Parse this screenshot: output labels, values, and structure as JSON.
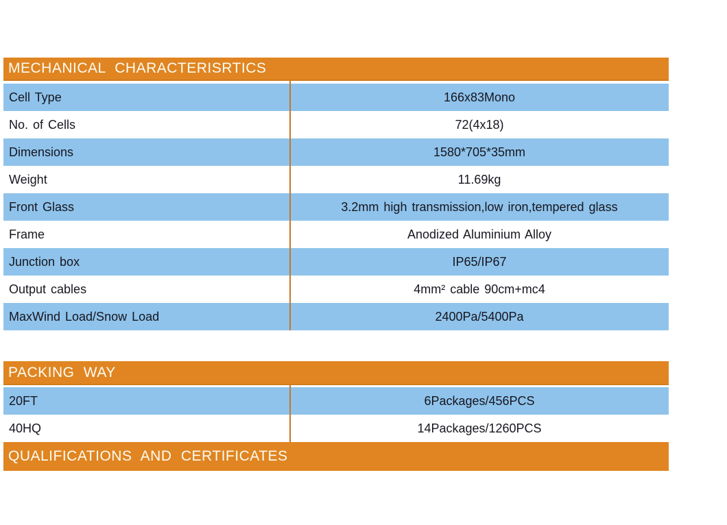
{
  "colors": {
    "header_orange": "#E08521",
    "row_blue": "#8FC3EB",
    "divider_orange": "#C4762F",
    "header_text": "#FCFCF4",
    "body_text": "#16161F"
  },
  "sections": [
    {
      "title": "MECHANICAL CHARACTERISRTICS",
      "rows": [
        {
          "label": "Cell Type",
          "value": "166x83Mono"
        },
        {
          "label": "No. of Cells",
          "value": "72(4x18)"
        },
        {
          "label": "Dimensions",
          "value": "1580*705*35mm"
        },
        {
          "label": "Weight",
          "value": "11.69kg"
        },
        {
          "label": "Front Glass",
          "value": "3.2mm high transmission,low iron,tempered glass"
        },
        {
          "label": "Frame",
          "value": "Anodized Aluminium Alloy"
        },
        {
          "label": "Junction box",
          "value": "IP65/IP67"
        },
        {
          "label": "Output cables",
          "value": "4mm² cable 90cm+mc4"
        },
        {
          "label": "MaxWind Load/Snow Load",
          "value": "2400Pa/5400Pa"
        }
      ]
    },
    {
      "title": "PACKING WAY",
      "rows": [
        {
          "label": "20FT",
          "value": "6Packages/456PCS"
        },
        {
          "label": "40HQ",
          "value": "14Packages/1260PCS"
        }
      ]
    },
    {
      "title": "QUALIFICATIONS AND CERTIFICATES",
      "rows": []
    }
  ]
}
